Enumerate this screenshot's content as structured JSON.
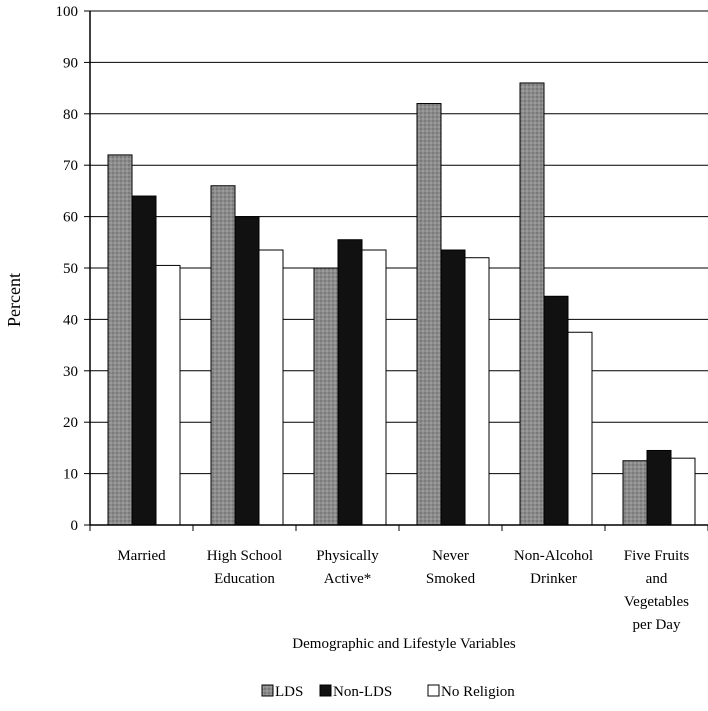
{
  "chart_data": {
    "type": "bar",
    "ylabel": "Percent",
    "xlabel": "Demographic and Lifestyle Variables",
    "ylim": [
      0,
      100
    ],
    "yticks": [
      "0",
      "10",
      "20",
      "30",
      "40",
      "50",
      "60",
      "70",
      "80",
      "90",
      "100"
    ],
    "grid": true,
    "legend_position": "bottom",
    "categories": [
      [
        "Married"
      ],
      [
        "High School",
        "Education"
      ],
      [
        "Physically",
        "Active*"
      ],
      [
        "Never",
        "Smoked"
      ],
      [
        "Non-Alcohol",
        "Drinker"
      ],
      [
        "Five Fruits",
        "and",
        "Vegetables",
        "per Day"
      ]
    ],
    "series": [
      {
        "name": "LDS",
        "color": "#8a8a8a",
        "values": [
          72,
          66,
          50,
          82,
          86,
          12.5
        ]
      },
      {
        "name": "Non-LDS",
        "color": "#111111",
        "values": [
          64,
          60,
          55.5,
          53.5,
          44.5,
          14.5
        ]
      },
      {
        "name": "No Religion",
        "color": "#ffffff",
        "values": [
          50.5,
          53.5,
          53.5,
          52,
          37.5,
          13
        ]
      }
    ]
  }
}
